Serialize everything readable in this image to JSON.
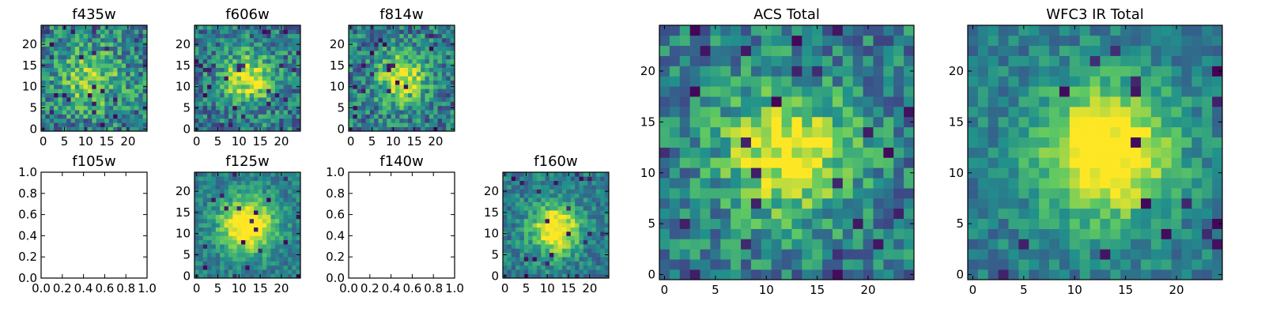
{
  "figure": {
    "colormap": [
      "#440154",
      "#3b528b",
      "#21918c",
      "#5ec962",
      "#fde725"
    ]
  },
  "chart_data": [
    {
      "type": "heatmap",
      "title": "f435w",
      "empty": false,
      "grid": false,
      "noise": 0.55,
      "amp": 0.35,
      "sigma": 5.5,
      "center": [
        11,
        12
      ],
      "seed": 11,
      "xlim": [
        -0.5,
        24.5
      ],
      "ylim": [
        -0.5,
        24.5
      ],
      "xticks": [
        0,
        5,
        10,
        15,
        20
      ],
      "yticks": [
        0,
        5,
        10,
        15,
        20
      ],
      "xtick_labels": [
        "0",
        "5",
        "10",
        "15",
        "20"
      ],
      "ytick_labels": [
        "0",
        "5",
        "10",
        "15",
        "20"
      ]
    },
    {
      "type": "heatmap",
      "title": "f606w",
      "empty": false,
      "grid": false,
      "noise": 0.5,
      "amp": 0.55,
      "sigma": 4.0,
      "center": [
        12,
        12
      ],
      "seed": 23,
      "xlim": [
        -0.5,
        24.5
      ],
      "ylim": [
        -0.5,
        24.5
      ],
      "xticks": [
        0,
        5,
        10,
        15,
        20
      ],
      "yticks": [
        0,
        5,
        10,
        15,
        20
      ],
      "xtick_labels": [
        "0",
        "5",
        "10",
        "15",
        "20"
      ],
      "ytick_labels": [
        "0",
        "5",
        "10",
        "15",
        "20"
      ]
    },
    {
      "type": "heatmap",
      "title": "f814w",
      "empty": false,
      "grid": false,
      "noise": 0.5,
      "amp": 0.55,
      "sigma": 4.0,
      "center": [
        12,
        12
      ],
      "seed": 37,
      "xlim": [
        -0.5,
        24.5
      ],
      "ylim": [
        -0.5,
        24.5
      ],
      "xticks": [
        0,
        5,
        10,
        15,
        20
      ],
      "yticks": [
        0,
        5,
        10,
        15,
        20
      ],
      "xtick_labels": [
        "0",
        "5",
        "10",
        "15",
        "20"
      ],
      "ytick_labels": [
        "0",
        "5",
        "10",
        "15",
        "20"
      ]
    },
    {
      "type": "heatmap",
      "title": "f105w",
      "empty": true,
      "grid": false,
      "xlim": [
        0,
        1
      ],
      "ylim": [
        0,
        1
      ],
      "xticks": [
        0,
        0.2,
        0.4,
        0.6,
        0.8,
        1.0
      ],
      "yticks": [
        0,
        0.2,
        0.4,
        0.6,
        0.8,
        1.0
      ],
      "xtick_labels": [
        "0.0",
        "0.2",
        "0.4",
        "0.6",
        "0.8",
        "1.0"
      ],
      "ytick_labels": [
        "0.0",
        "0.2",
        "0.4",
        "0.6",
        "0.8",
        "1.0"
      ]
    },
    {
      "type": "heatmap",
      "title": "f125w",
      "empty": false,
      "grid": false,
      "noise": 0.3,
      "amp": 0.75,
      "sigma": 4.5,
      "center": [
        12,
        12
      ],
      "seed": 41,
      "xlim": [
        -0.5,
        24.5
      ],
      "ylim": [
        -0.5,
        24.5
      ],
      "xticks": [
        0,
        5,
        10,
        15,
        20
      ],
      "yticks": [
        0,
        5,
        10,
        15,
        20
      ],
      "xtick_labels": [
        "0",
        "5",
        "10",
        "15",
        "20"
      ],
      "ytick_labels": [
        "0",
        "5",
        "10",
        "15",
        "20"
      ]
    },
    {
      "type": "heatmap",
      "title": "f140w",
      "empty": true,
      "grid": false,
      "xlim": [
        0,
        1
      ],
      "ylim": [
        0,
        1
      ],
      "xticks": [
        0,
        0.2,
        0.4,
        0.6,
        0.8,
        1.0
      ],
      "yticks": [
        0,
        0.2,
        0.4,
        0.6,
        0.8,
        1.0
      ],
      "xtick_labels": [
        "0.0",
        "0.2",
        "0.4",
        "0.6",
        "0.8",
        "1.0"
      ],
      "ytick_labels": [
        "0.0",
        "0.2",
        "0.4",
        "0.6",
        "0.8",
        "1.0"
      ]
    },
    {
      "type": "heatmap",
      "title": "f160w",
      "empty": false,
      "grid": false,
      "noise": 0.35,
      "amp": 0.7,
      "sigma": 4.0,
      "center": [
        12,
        11
      ],
      "seed": 53,
      "xlim": [
        -0.5,
        24.5
      ],
      "ylim": [
        -0.5,
        24.5
      ],
      "xticks": [
        0,
        5,
        10,
        15,
        20
      ],
      "yticks": [
        0,
        5,
        10,
        15,
        20
      ],
      "xtick_labels": [
        "0",
        "5",
        "10",
        "15",
        "20"
      ],
      "ytick_labels": [
        "0",
        "5",
        "10",
        "15",
        "20"
      ]
    },
    {
      "type": "heatmap",
      "title": "ACS Total",
      "empty": false,
      "grid": false,
      "noise": 0.45,
      "amp": 0.6,
      "sigma": 4.5,
      "center": [
        12,
        12
      ],
      "seed": 67,
      "xlim": [
        -0.5,
        24.5
      ],
      "ylim": [
        -0.5,
        24.5
      ],
      "xticks": [
        0,
        5,
        10,
        15,
        20
      ],
      "yticks": [
        0,
        5,
        10,
        15,
        20
      ],
      "xtick_labels": [
        "0",
        "5",
        "10",
        "15",
        "20"
      ],
      "ytick_labels": [
        "0",
        "5",
        "10",
        "15",
        "20"
      ]
    },
    {
      "type": "heatmap",
      "title": "WFC3 IR Total",
      "empty": false,
      "grid": false,
      "noise": 0.3,
      "amp": 0.75,
      "sigma": 4.5,
      "center": [
        13,
        12
      ],
      "seed": 79,
      "xlim": [
        -0.5,
        24.5
      ],
      "ylim": [
        -0.5,
        24.5
      ],
      "xticks": [
        0,
        5,
        10,
        15,
        20
      ],
      "yticks": [
        0,
        5,
        10,
        15,
        20
      ],
      "xtick_labels": [
        "0",
        "5",
        "10",
        "15",
        "20"
      ],
      "ytick_labels": [
        "0",
        "5",
        "10",
        "15",
        "20"
      ]
    }
  ]
}
